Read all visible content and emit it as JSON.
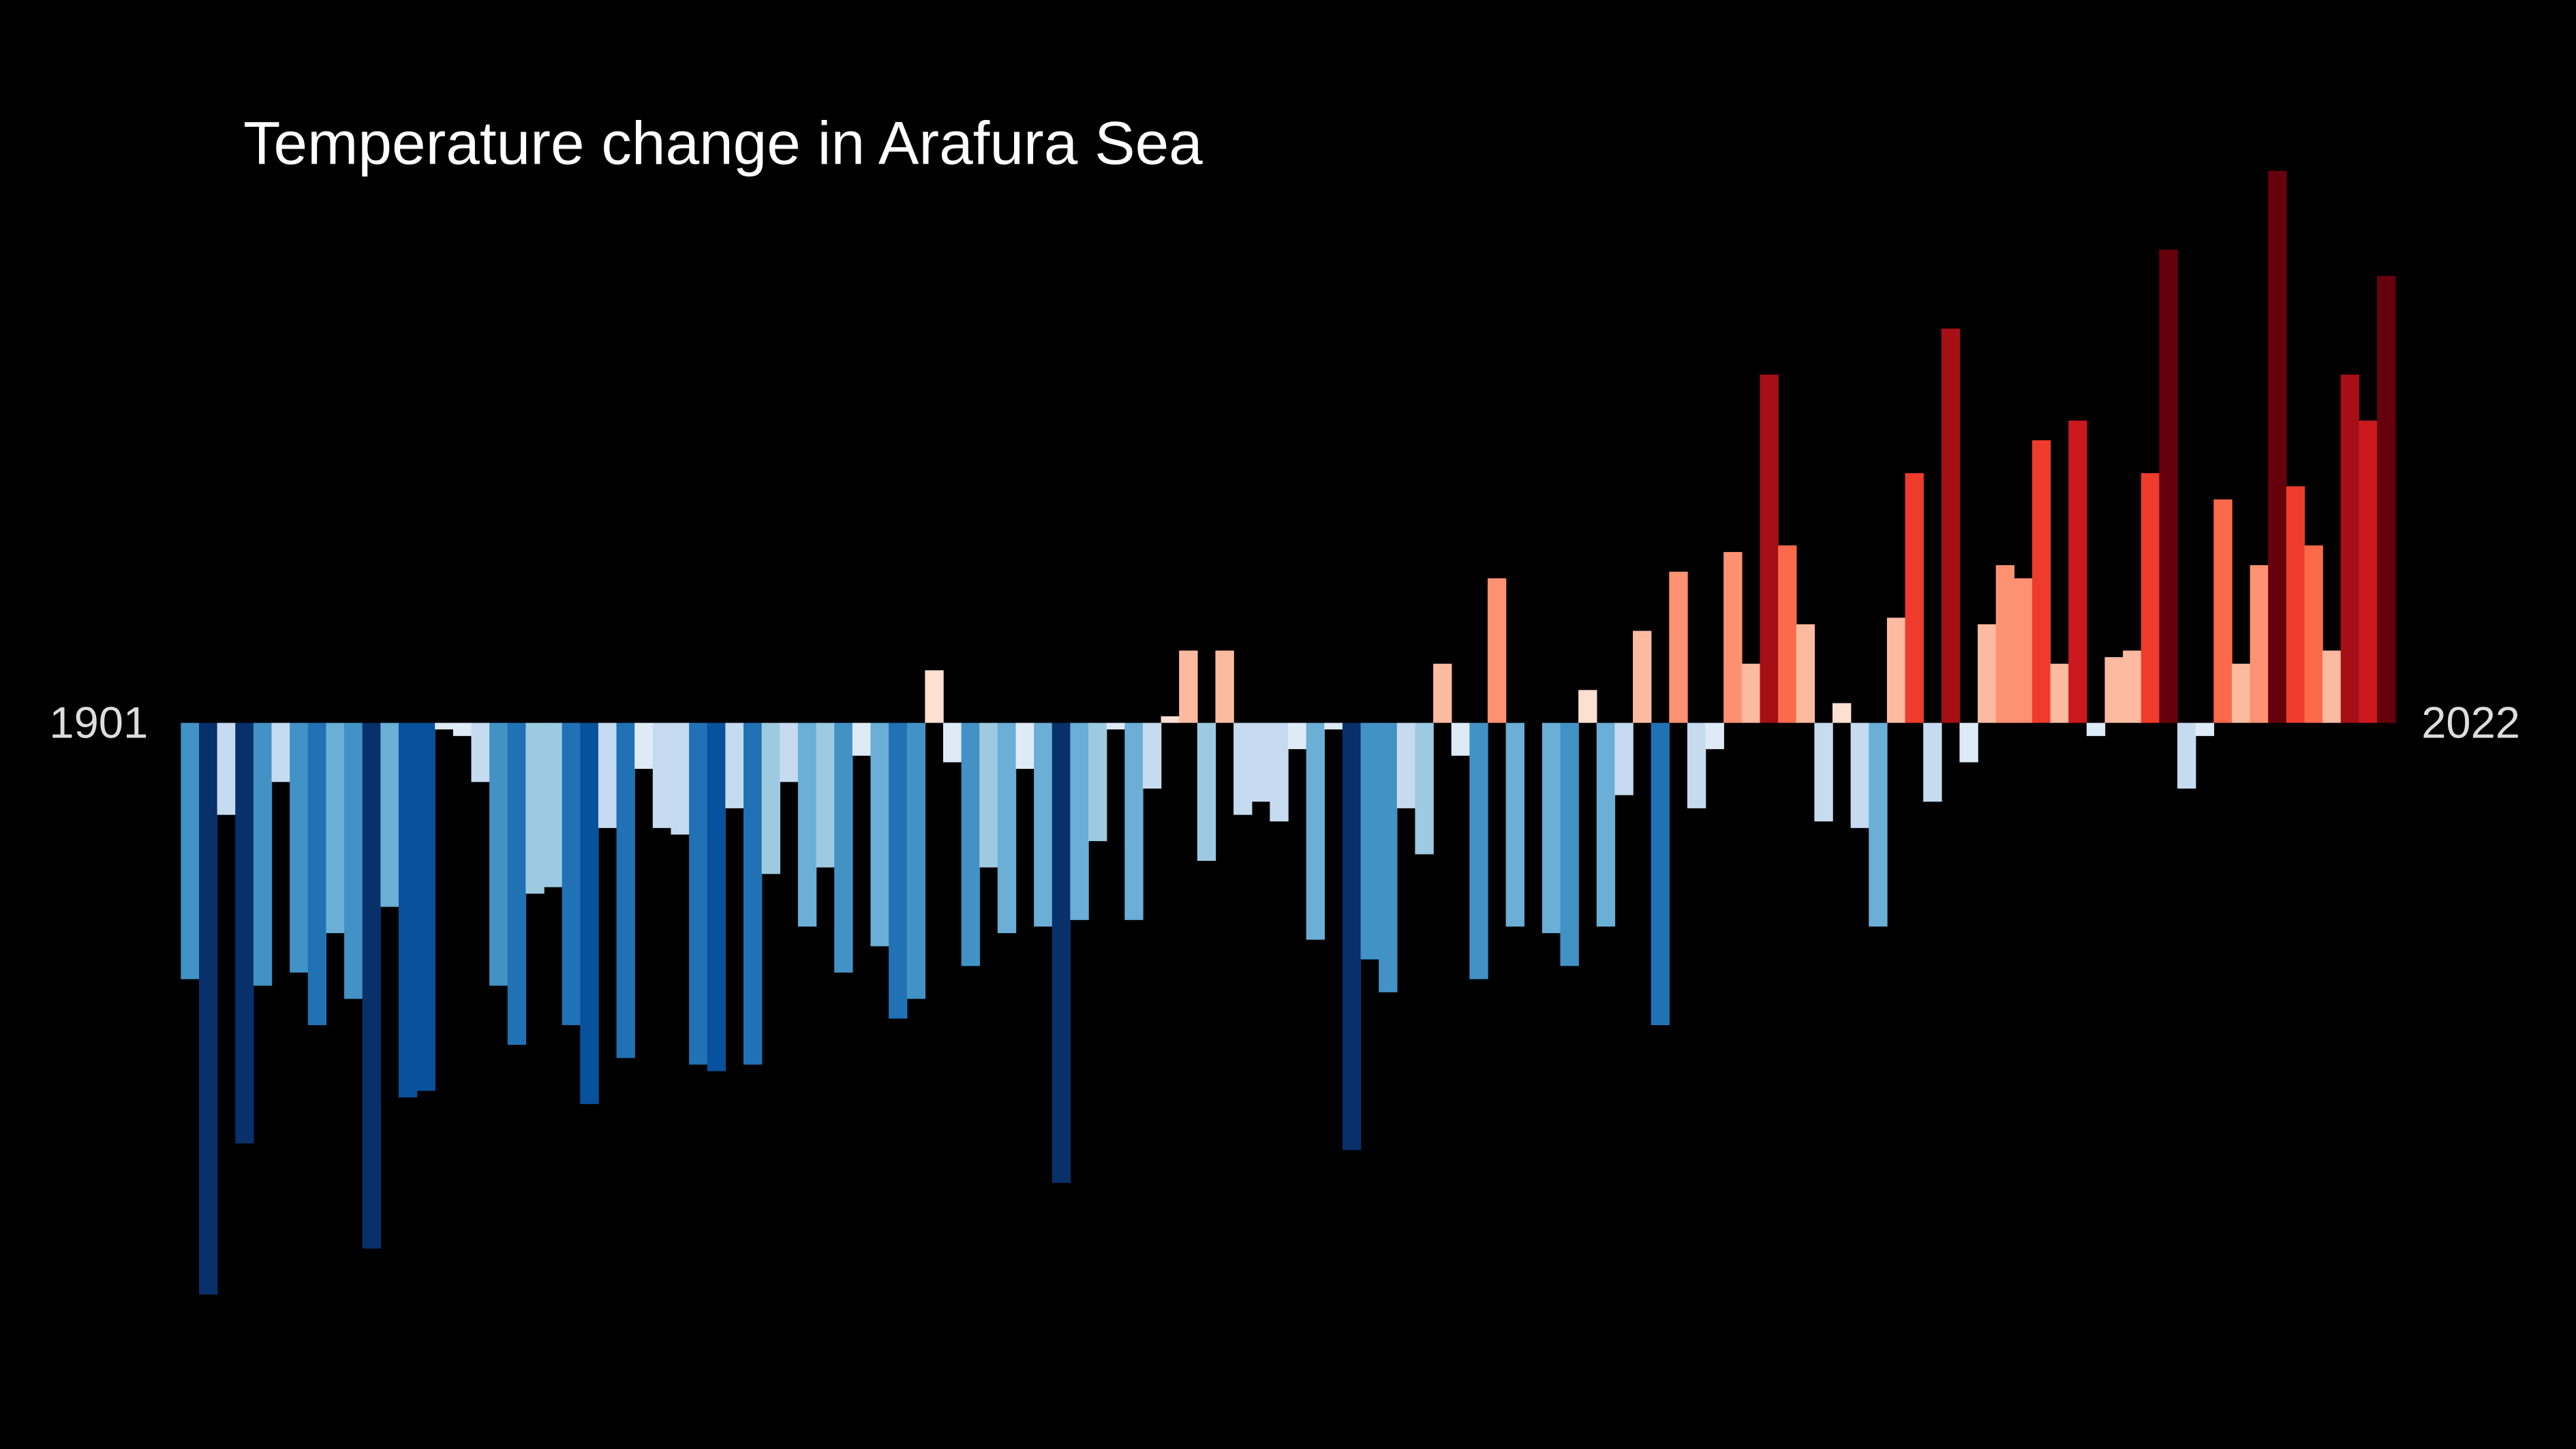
{
  "chart_data": {
    "type": "bar",
    "title": "Temperature change in Arafura Sea",
    "start_label": "1901",
    "end_label": "2022",
    "values": [
      -0.39,
      -0.87,
      -0.14,
      -0.64,
      -0.4,
      -0.09,
      -0.38,
      -0.46,
      -0.32,
      -0.42,
      -0.8,
      -0.28,
      -0.57,
      -0.56,
      -0.01,
      -0.02,
      -0.09,
      -0.4,
      -0.49,
      -0.26,
      -0.25,
      -0.46,
      -0.58,
      -0.16,
      -0.51,
      -0.07,
      -0.16,
      -0.17,
      -0.52,
      -0.53,
      -0.13,
      -0.52,
      -0.23,
      -0.09,
      -0.31,
      -0.22,
      -0.38,
      -0.05,
      -0.34,
      -0.45,
      -0.42,
      0.08,
      -0.06,
      -0.37,
      -0.22,
      -0.32,
      -0.07,
      -0.31,
      -0.7,
      -0.3,
      -0.18,
      -0.01,
      -0.3,
      -0.1,
      0.01,
      0.11,
      -0.21,
      0.11,
      -0.14,
      -0.12,
      -0.15,
      -0.04,
      -0.33,
      -0.01,
      -0.65,
      -0.36,
      -0.41,
      -0.13,
      -0.2,
      0.09,
      -0.05,
      -0.39,
      0.22,
      -0.31,
      0,
      -0.32,
      -0.37,
      0.05,
      -0.31,
      -0.11,
      0.14,
      -0.46,
      0.23,
      -0.13,
      -0.04,
      0.26,
      0.09,
      0.53,
      0.27,
      0.15,
      -0.15,
      0.03,
      -0.16,
      -0.31,
      0.16,
      0.38,
      -0.12,
      0.6,
      -0.06,
      0.15,
      0.24,
      0.22,
      0.43,
      0.09,
      0.46,
      -0.02,
      0.1,
      0.11,
      0.38,
      0.72,
      -0.1,
      -0.02,
      0.34,
      0.09,
      0.24,
      0.84,
      0.36,
      0.27,
      0.11,
      0.53,
      0.46,
      0.68
    ],
    "ylim": [
      -0.9,
      0.9
    ],
    "color_domain": [
      -0.7,
      0.7
    ],
    "colors": [
      "#08306b",
      "#08519c",
      "#2171b5",
      "#4292c6",
      "#6baed6",
      "#9ecae1",
      "#c6dbef",
      "#deebf7",
      "#fee0d2",
      "#fcbba1",
      "#fc9272",
      "#fb6a4a",
      "#ef3b2c",
      "#cb181d",
      "#a50f15",
      "#67000d"
    ]
  }
}
